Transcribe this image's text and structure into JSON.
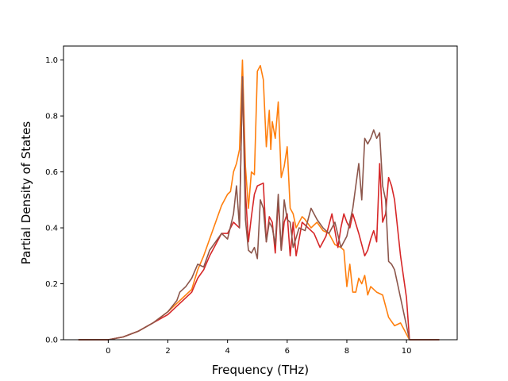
{
  "chart_data": {
    "type": "line",
    "title": "",
    "xlabel": "Frequency (THz)",
    "ylabel": "Partial Density of States",
    "xlim": [
      -1.5,
      11.7
    ],
    "ylim": [
      0.0,
      1.05
    ],
    "xticks": [
      0,
      2,
      4,
      6,
      8,
      10
    ],
    "yticks": [
      0.0,
      0.2,
      0.4,
      0.6,
      0.8,
      1.0
    ],
    "xtick_labels": [
      "0",
      "2",
      "4",
      "6",
      "8",
      "10"
    ],
    "ytick_labels": [
      "0.0",
      "0.2",
      "0.4",
      "0.6",
      "0.8",
      "1.0"
    ],
    "grid": false,
    "legend": "none",
    "series": [
      {
        "color": "#ff7f0e",
        "x": [
          -1.0,
          0.0,
          0.5,
          1.0,
          1.5,
          2.0,
          2.3,
          2.5,
          2.8,
          3.0,
          3.2,
          3.4,
          3.6,
          3.8,
          4.0,
          4.1,
          4.2,
          4.3,
          4.4,
          4.5,
          4.6,
          4.7,
          4.8,
          4.9,
          5.0,
          5.1,
          5.2,
          5.3,
          5.4,
          5.45,
          5.5,
          5.6,
          5.7,
          5.8,
          5.9,
          6.0,
          6.1,
          6.2,
          6.3,
          6.4,
          6.5,
          6.6,
          6.8,
          7.0,
          7.2,
          7.4,
          7.6,
          7.8,
          7.9,
          8.0,
          8.1,
          8.2,
          8.3,
          8.4,
          8.5,
          8.6,
          8.7,
          8.8,
          9.0,
          9.2,
          9.4,
          9.6,
          9.8,
          10.0,
          10.1,
          10.2,
          10.3,
          11.1
        ],
        "y": [
          0.0,
          0.0,
          0.01,
          0.03,
          0.06,
          0.1,
          0.13,
          0.15,
          0.18,
          0.25,
          0.3,
          0.36,
          0.42,
          0.48,
          0.52,
          0.53,
          0.6,
          0.63,
          0.68,
          1.0,
          0.62,
          0.47,
          0.6,
          0.59,
          0.96,
          0.98,
          0.93,
          0.69,
          0.82,
          0.68,
          0.78,
          0.72,
          0.85,
          0.58,
          0.62,
          0.69,
          0.47,
          0.45,
          0.4,
          0.42,
          0.44,
          0.43,
          0.4,
          0.42,
          0.39,
          0.38,
          0.34,
          0.33,
          0.32,
          0.19,
          0.27,
          0.17,
          0.17,
          0.22,
          0.2,
          0.23,
          0.16,
          0.19,
          0.17,
          0.16,
          0.08,
          0.05,
          0.06,
          0.02,
          0.0,
          0.0,
          0.0,
          0.0
        ]
      },
      {
        "color": "#d62728",
        "x": [
          -1.0,
          0.0,
          0.5,
          1.0,
          1.5,
          2.0,
          2.3,
          2.5,
          2.8,
          3.0,
          3.2,
          3.4,
          3.6,
          3.8,
          4.0,
          4.2,
          4.4,
          4.5,
          4.6,
          4.7,
          4.8,
          4.9,
          5.0,
          5.2,
          5.3,
          5.4,
          5.5,
          5.6,
          5.7,
          5.8,
          5.9,
          6.0,
          6.1,
          6.2,
          6.3,
          6.5,
          6.7,
          6.9,
          7.1,
          7.3,
          7.5,
          7.7,
          7.8,
          7.9,
          8.0,
          8.1,
          8.2,
          8.4,
          8.6,
          8.7,
          8.8,
          8.9,
          9.0,
          9.1,
          9.2,
          9.3,
          9.4,
          9.5,
          9.6,
          9.8,
          10.0,
          10.1,
          10.2,
          11.1
        ],
        "y": [
          0.0,
          0.0,
          0.01,
          0.03,
          0.06,
          0.09,
          0.12,
          0.14,
          0.17,
          0.22,
          0.25,
          0.3,
          0.34,
          0.38,
          0.38,
          0.42,
          0.4,
          0.94,
          0.53,
          0.35,
          0.44,
          0.52,
          0.55,
          0.56,
          0.35,
          0.44,
          0.42,
          0.31,
          0.5,
          0.32,
          0.42,
          0.45,
          0.3,
          0.42,
          0.3,
          0.42,
          0.4,
          0.38,
          0.33,
          0.37,
          0.45,
          0.33,
          0.4,
          0.45,
          0.42,
          0.4,
          0.45,
          0.38,
          0.3,
          0.32,
          0.36,
          0.39,
          0.35,
          0.63,
          0.42,
          0.45,
          0.58,
          0.55,
          0.5,
          0.3,
          0.15,
          0.0,
          0.0,
          0.0
        ]
      },
      {
        "color": "#8c564b",
        "x": [
          -1.0,
          0.0,
          0.5,
          1.0,
          1.5,
          2.0,
          2.3,
          2.4,
          2.6,
          2.8,
          3.0,
          3.2,
          3.4,
          3.6,
          3.8,
          4.0,
          4.2,
          4.3,
          4.4,
          4.5,
          4.6,
          4.7,
          4.8,
          4.9,
          5.0,
          5.1,
          5.2,
          5.3,
          5.4,
          5.5,
          5.6,
          5.7,
          5.8,
          5.9,
          6.0,
          6.1,
          6.2,
          6.4,
          6.6,
          6.8,
          7.0,
          7.2,
          7.4,
          7.6,
          7.8,
          8.0,
          8.2,
          8.4,
          8.5,
          8.6,
          8.7,
          8.8,
          8.9,
          9.0,
          9.1,
          9.2,
          9.3,
          9.4,
          9.5,
          9.6,
          9.8,
          10.0,
          10.1,
          10.2,
          11.1
        ],
        "y": [
          0.0,
          0.0,
          0.01,
          0.03,
          0.06,
          0.1,
          0.14,
          0.17,
          0.19,
          0.22,
          0.27,
          0.26,
          0.32,
          0.35,
          0.38,
          0.36,
          0.45,
          0.55,
          0.4,
          0.94,
          0.43,
          0.32,
          0.31,
          0.33,
          0.29,
          0.5,
          0.47,
          0.35,
          0.42,
          0.4,
          0.34,
          0.52,
          0.32,
          0.5,
          0.43,
          0.42,
          0.33,
          0.4,
          0.39,
          0.47,
          0.43,
          0.4,
          0.38,
          0.42,
          0.33,
          0.37,
          0.47,
          0.63,
          0.5,
          0.72,
          0.7,
          0.72,
          0.75,
          0.72,
          0.74,
          0.55,
          0.5,
          0.28,
          0.27,
          0.25,
          0.15,
          0.05,
          0.0,
          0.0,
          0.0
        ]
      }
    ]
  }
}
